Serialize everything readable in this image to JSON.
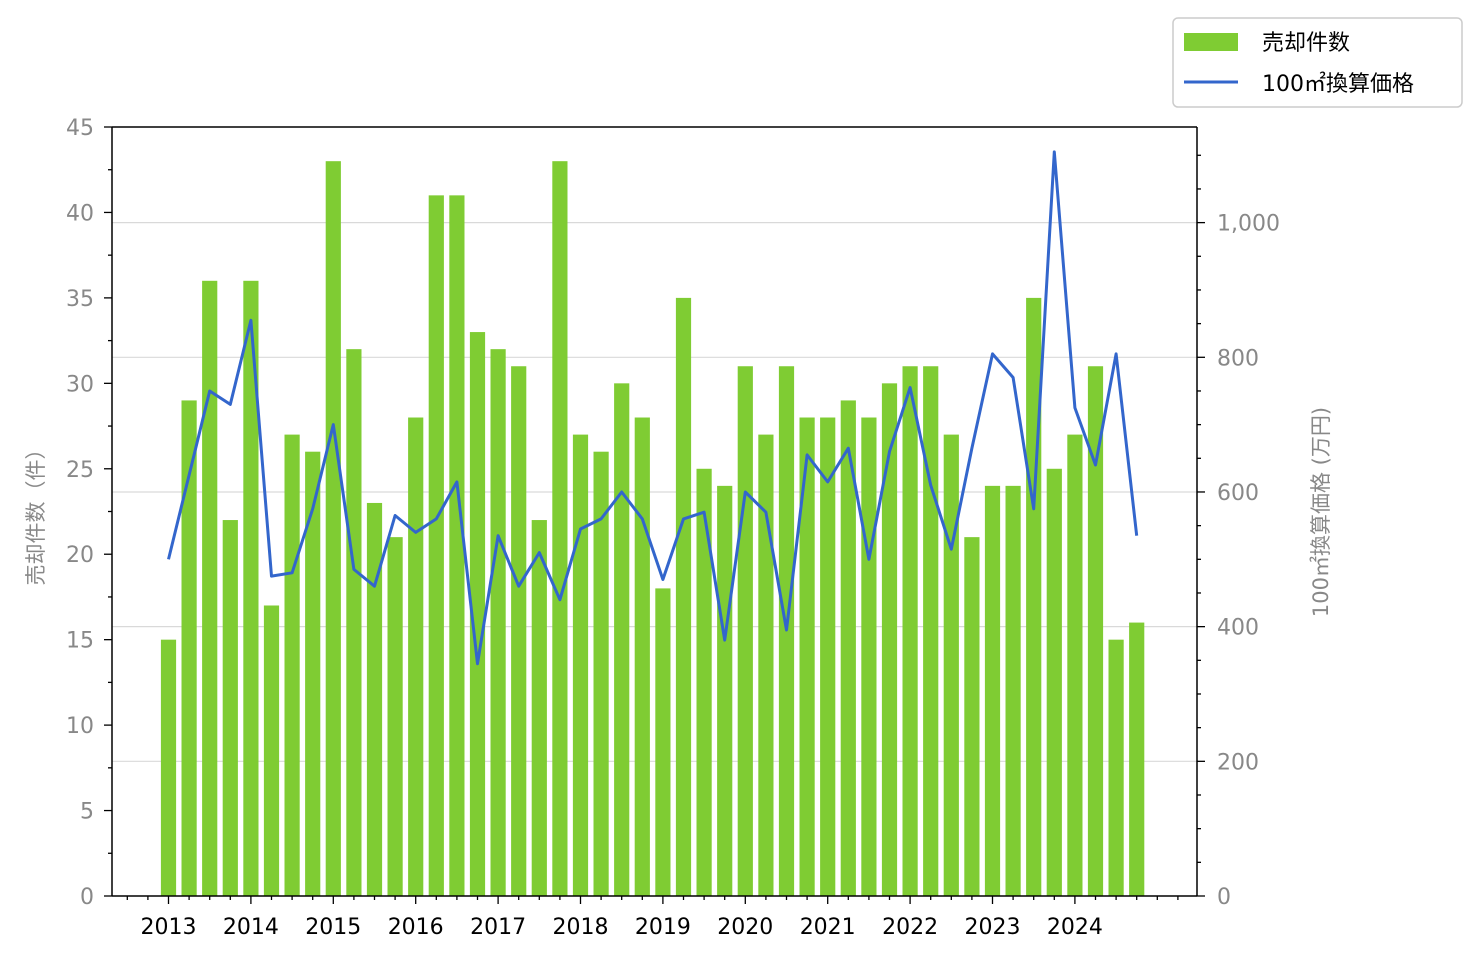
{
  "chart_data": {
    "type": "bar",
    "x_tick_labels": [
      "2013",
      "2014",
      "2015",
      "2016",
      "2017",
      "2018",
      "2019",
      "2020",
      "2021",
      "2022",
      "2023",
      "2024"
    ],
    "quarters": [
      "2013Q1",
      "2013Q2",
      "2013Q3",
      "2013Q4",
      "2014Q1",
      "2014Q2",
      "2014Q3",
      "2014Q4",
      "2015Q1",
      "2015Q2",
      "2015Q3",
      "2015Q4",
      "2016Q1",
      "2016Q2",
      "2016Q3",
      "2016Q4",
      "2017Q1",
      "2017Q2",
      "2017Q3",
      "2017Q4",
      "2018Q1",
      "2018Q2",
      "2018Q3",
      "2018Q4",
      "2019Q1",
      "2019Q2",
      "2019Q3",
      "2019Q4",
      "2020Q1",
      "2020Q2",
      "2020Q3",
      "2020Q4",
      "2021Q1",
      "2021Q2",
      "2021Q3",
      "2021Q4",
      "2022Q1",
      "2022Q2",
      "2022Q3",
      "2022Q4",
      "2023Q1",
      "2023Q2",
      "2023Q3",
      "2023Q4",
      "2024Q1",
      "2024Q2",
      "2024Q3",
      "2024Q4"
    ],
    "series": [
      {
        "name": "売却件数",
        "type": "bar",
        "axis": "left",
        "color": "#7fcc33",
        "values": [
          15,
          29,
          36,
          22,
          36,
          17,
          27,
          26,
          43,
          32,
          23,
          21,
          28,
          41,
          41,
          33,
          32,
          31,
          22,
          43,
          27,
          26,
          30,
          28,
          18,
          35,
          25,
          24,
          31,
          27,
          31,
          28,
          28,
          29,
          28,
          30,
          31,
          31,
          27,
          21,
          24,
          24,
          35,
          25,
          27,
          31,
          15,
          16
        ]
      },
      {
        "name": "100㎡換算価格",
        "type": "line",
        "axis": "right",
        "color": "#3366cc",
        "values": [
          500,
          625,
          750,
          730,
          855,
          475,
          480,
          575,
          700,
          485,
          460,
          565,
          540,
          560,
          615,
          345,
          535,
          460,
          510,
          440,
          545,
          560,
          600,
          560,
          470,
          560,
          570,
          380,
          600,
          570,
          395,
          655,
          615,
          665,
          500,
          660,
          755,
          610,
          515,
          665,
          805,
          770,
          575,
          1105,
          725,
          640,
          805,
          535
        ]
      }
    ],
    "left_axis": {
      "label": "売却件数（件）",
      "ylim": [
        0,
        45
      ],
      "ticks": [
        "0",
        "5",
        "10",
        "15",
        "20",
        "25",
        "30",
        "35",
        "40",
        "45"
      ]
    },
    "right_axis": {
      "label": "100㎡換算価格 (万円)",
      "ylim": [
        0,
        1142
      ],
      "ticks": [
        "0",
        "200",
        "400",
        "600",
        "800",
        "1,000"
      ]
    },
    "grid": "horizontal-right-axis",
    "legend": "top-right"
  }
}
